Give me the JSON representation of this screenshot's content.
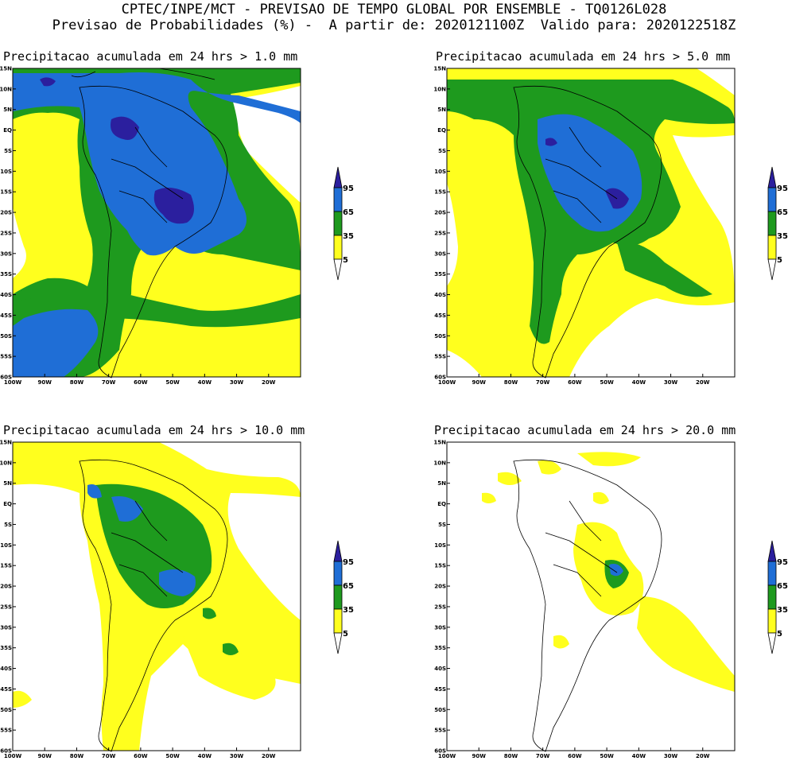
{
  "header": {
    "line1": "CPTEC/INPE/MCT - PREVISAO DE TEMPO GLOBAL POR ENSEMBLE - TQ0126L028",
    "line2": "Previsao de Probabilidades (%) -  A partir de: 2020121100Z  Valido para: 2020122518Z"
  },
  "axes": {
    "lat_labels": [
      "15N",
      "10N",
      "5N",
      "EQ",
      "5S",
      "10S",
      "15S",
      "20S",
      "25S",
      "30S",
      "35S",
      "40S",
      "45S",
      "50S",
      "55S",
      "60S"
    ],
    "lon_labels": [
      "100W",
      "90W",
      "80W",
      "70W",
      "60W",
      "50W",
      "40W",
      "30W",
      "20W"
    ]
  },
  "legend": {
    "levels": [
      "95",
      "65",
      "35",
      "5"
    ],
    "colors": {
      "c95": "#2b1f9e",
      "c65": "#1f6ed6",
      "c35": "#1e9a1e",
      "c5": "#ffff1e",
      "c0": "#ffffff"
    }
  },
  "panels": [
    {
      "title": "Precipitacao acumulada em 24 hrs > 1.0 mm"
    },
    {
      "title": "Precipitacao acumulada em 24 hrs > 5.0 mm"
    },
    {
      "title": "Precipitacao acumulada em 24 hrs > 10.0 mm"
    },
    {
      "title": "Precipitacao acumulada em 24 hrs > 20.0 mm"
    }
  ]
}
